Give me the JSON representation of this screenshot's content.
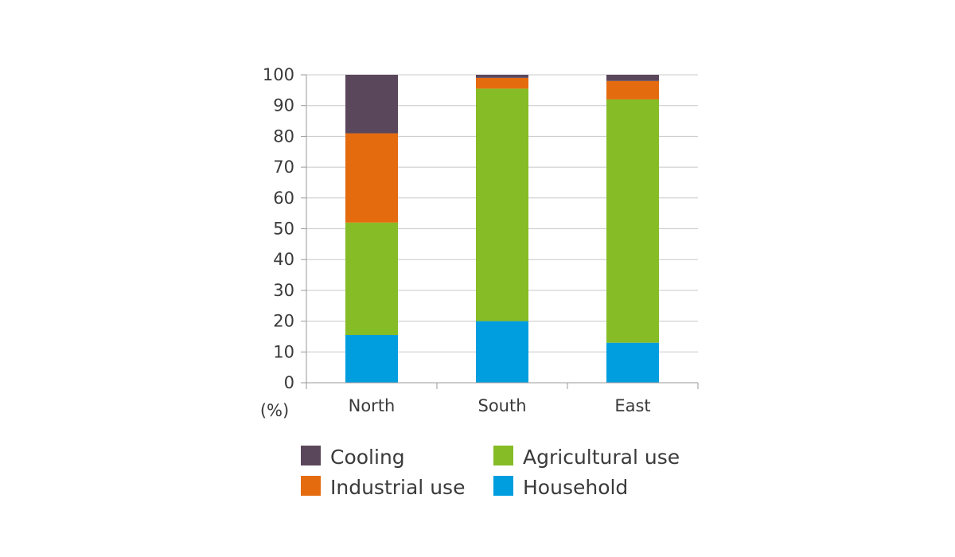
{
  "chart_data": {
    "type": "bar",
    "stacked": true,
    "categories": [
      "North",
      "South",
      "East"
    ],
    "series": [
      {
        "name": "Household",
        "values": [
          15.5,
          20,
          13
        ],
        "color": "#009ddf"
      },
      {
        "name": "Agricultural use",
        "values": [
          36.5,
          75.5,
          79
        ],
        "color": "#86bc25"
      },
      {
        "name": "Industrial use",
        "values": [
          29,
          3.5,
          6
        ],
        "color": "#e56b0f"
      },
      {
        "name": "Cooling",
        "values": [
          19,
          1,
          2
        ],
        "color": "#5b475c"
      }
    ],
    "ylim": [
      0,
      100
    ],
    "yticks": [
      0,
      10,
      20,
      30,
      40,
      50,
      60,
      70,
      80,
      90,
      100
    ],
    "unit_label": "(%)",
    "grid": true,
    "legend": {
      "placement": "bottom",
      "order": [
        "Cooling",
        "Agricultural use",
        "Industrial use",
        "Household"
      ]
    },
    "title": "",
    "xlabel": "",
    "ylabel": ""
  }
}
